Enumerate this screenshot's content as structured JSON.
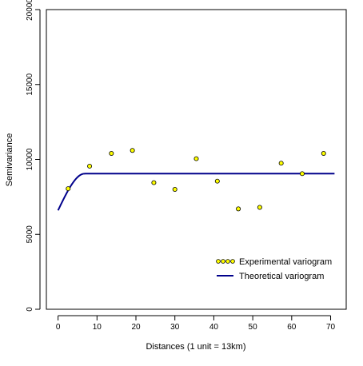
{
  "chart_data": {
    "type": "scatter",
    "title": "",
    "xlabel": "Distances (1 unit = 13km)",
    "ylabel": "Semivariance",
    "xlim": [
      -3,
      74
    ],
    "ylim": [
      0,
      20000
    ],
    "xticks": [
      "0",
      "10",
      "20",
      "30",
      "40",
      "50",
      "60",
      "70"
    ],
    "yticks": [
      "0",
      "5000",
      "10000",
      "15000",
      "20000"
    ],
    "grid": false,
    "legend_position": "bottom-right",
    "series": [
      {
        "name": "Experimental variogram",
        "kind": "points",
        "color": "#ffff00",
        "edge_color": "#000000",
        "x": [
          2.6,
          8.1,
          13.7,
          19.1,
          24.6,
          30.0,
          35.5,
          40.9,
          46.3,
          51.8,
          57.3,
          62.7,
          68.2
        ],
        "y": [
          8050,
          9550,
          10400,
          10600,
          8450,
          8000,
          10050,
          8550,
          6700,
          6800,
          9750,
          9050,
          10400
        ]
      },
      {
        "name": "Theoretical variogram",
        "kind": "line",
        "color": "#00008b",
        "model": "spherical",
        "nugget": 6600,
        "sill": 9050,
        "range": 6.8,
        "x_start": 0,
        "x_end": 71
      }
    ]
  }
}
